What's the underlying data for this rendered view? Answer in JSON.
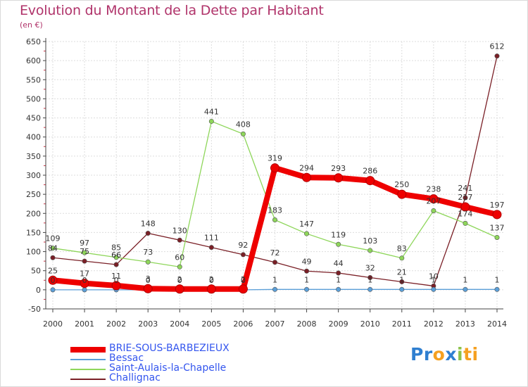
{
  "colors": {
    "title": "#b0336a",
    "legend_text": "#3355ee",
    "axis": "#444444",
    "grid": "#dddddd"
  },
  "chart_data": {
    "type": "line",
    "title": "Evolution du Montant de la Dette par Habitant",
    "unit_label": "(en €)",
    "x": [
      "2000",
      "2001",
      "2002",
      "2003",
      "2004",
      "2005",
      "2006",
      "2007",
      "2008",
      "2009",
      "2010",
      "2011",
      "2012",
      "2013",
      "2014"
    ],
    "ylim": [
      -50,
      650
    ],
    "yticks": [
      "-50",
      "0",
      "50",
      "100",
      "150",
      "200",
      "250",
      "300",
      "350",
      "400",
      "450",
      "500",
      "550",
      "600",
      "650"
    ],
    "grid": true,
    "legend_position": "bottom-left",
    "series": [
      {
        "name": "Challignac",
        "color": "#7a1f26",
        "values": [
          84,
          75,
          66,
          148,
          130,
          111,
          92,
          72,
          49,
          44,
          32,
          21,
          10,
          241,
          612
        ],
        "labels": [
          "84",
          "75",
          "66",
          "148",
          "130",
          "111",
          "92",
          "72",
          "49",
          "44",
          "32",
          "21",
          "10",
          "241",
          "612"
        ]
      },
      {
        "name": "Saint-Aulais-la-Chapelle",
        "color": "#8ed65a",
        "values": [
          109,
          97,
          85,
          73,
          60,
          441,
          408,
          183,
          147,
          119,
          103,
          83,
          207,
          174,
          137
        ],
        "labels": [
          "109",
          "97",
          "85",
          "73",
          "60",
          "441",
          "408",
          "183",
          "147",
          "119",
          "103",
          "83",
          "207",
          "174",
          "137"
        ]
      },
      {
        "name": "Bessac",
        "color": "#5b9fd8",
        "values": [
          0,
          0,
          0,
          0,
          0,
          0,
          0,
          1,
          1,
          1,
          1,
          1,
          1,
          1,
          1
        ],
        "labels": [
          "0",
          "0",
          "0",
          "0",
          "0",
          "0",
          "0",
          "1",
          "1",
          "1",
          "1",
          "1",
          "1",
          "1",
          "1"
        ]
      },
      {
        "name": "BRIE-SOUS-BARBEZIEUX",
        "color": "#ee0000",
        "values": [
          25,
          17,
          11,
          3,
          2,
          2,
          2,
          319,
          294,
          293,
          286,
          250,
          238,
          217,
          197
        ],
        "labels": [
          "25",
          "17",
          "11",
          "3",
          "2",
          "2",
          "2",
          "319",
          "294",
          "293",
          "286",
          "250",
          "238",
          "217",
          "197"
        ]
      }
    ],
    "legend": [
      "BRIE-SOUS-BARBEZIEUX",
      "Bessac",
      "Saint-Aulais-la-Chapelle",
      "Challignac"
    ]
  },
  "logo": {
    "parts": [
      "Pr",
      "o",
      "x",
      "i",
      "ti"
    ]
  }
}
